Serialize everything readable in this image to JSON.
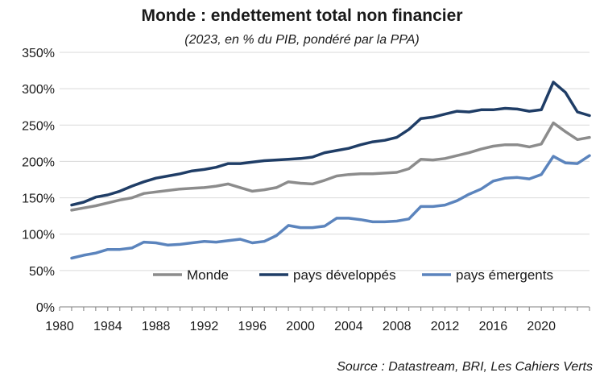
{
  "chart_data": {
    "type": "line",
    "title": "Monde : endettement total non financier",
    "subtitle": "(2023, en % du PIB, pondéré par la PPA)",
    "source": "Source : Datastream, BRI, Les Cahiers Verts",
    "xlim": [
      1980,
      2024
    ],
    "ylim": [
      0,
      350
    ],
    "x_ticks": [
      1980,
      1984,
      1988,
      1992,
      1996,
      2000,
      2004,
      2008,
      2012,
      2016,
      2020
    ],
    "x_tick_labels": [
      "1980",
      "1984",
      "1988",
      "1992",
      "1996",
      "2000",
      "2004",
      "2008",
      "2012",
      "2016",
      "2020"
    ],
    "y_ticks": [
      0,
      50,
      100,
      150,
      200,
      250,
      300,
      350
    ],
    "y_tick_labels": [
      "0%",
      "50%",
      "100%",
      "150%",
      "200%",
      "250%",
      "300%",
      "350%"
    ],
    "grid": "horizontal",
    "legend": "inside-lower-right",
    "x": [
      1981,
      1982,
      1983,
      1984,
      1985,
      1986,
      1987,
      1988,
      1989,
      1990,
      1991,
      1992,
      1993,
      1994,
      1995,
      1996,
      1997,
      1998,
      1999,
      2000,
      2001,
      2002,
      2003,
      2004,
      2005,
      2006,
      2007,
      2008,
      2009,
      2010,
      2011,
      2012,
      2013,
      2014,
      2015,
      2016,
      2017,
      2018,
      2019,
      2020,
      2021,
      2022,
      2023,
      2024
    ],
    "series": [
      {
        "name": "Monde",
        "color": "#8c8c8c",
        "values": [
          133,
          136,
          139,
          143,
          147,
          150,
          156,
          158,
          160,
          162,
          163,
          164,
          166,
          169,
          164,
          159,
          161,
          164,
          172,
          170,
          169,
          174,
          180,
          182,
          183,
          183,
          184,
          185,
          190,
          203,
          202,
          204,
          208,
          212,
          217,
          221,
          223,
          223,
          220,
          224,
          253,
          241,
          230,
          233
        ]
      },
      {
        "name": "pays développés",
        "color": "#1f3d66",
        "values": [
          140,
          144,
          151,
          154,
          159,
          166,
          172,
          177,
          180,
          183,
          187,
          189,
          192,
          197,
          197,
          199,
          201,
          202,
          203,
          204,
          206,
          212,
          215,
          218,
          223,
          227,
          229,
          233,
          244,
          259,
          261,
          265,
          269,
          268,
          271,
          271,
          273,
          272,
          269,
          271,
          309,
          295,
          268,
          263
        ]
      },
      {
        "name": "pays émergents",
        "color": "#5b84bd",
        "values": [
          67,
          71,
          74,
          79,
          79,
          81,
          89,
          88,
          85,
          86,
          88,
          90,
          89,
          91,
          93,
          88,
          90,
          98,
          112,
          109,
          109,
          111,
          122,
          122,
          120,
          117,
          117,
          118,
          121,
          138,
          138,
          140,
          146,
          155,
          162,
          173,
          177,
          178,
          176,
          182,
          207,
          198,
          197,
          208
        ]
      }
    ]
  }
}
